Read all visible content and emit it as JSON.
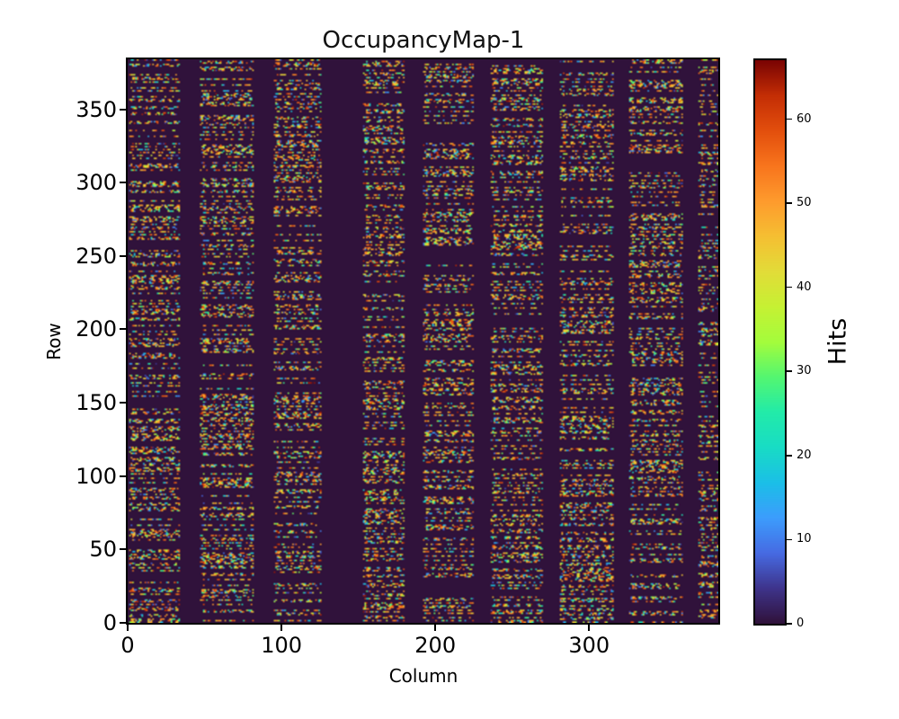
{
  "figure": {
    "title": "OccupancyMap-1",
    "background_color": "#ffffff"
  },
  "axes": {
    "xlabel": "Column",
    "ylabel": "Row",
    "xticks": [
      0,
      100,
      200,
      300
    ],
    "yticks": [
      0,
      50,
      100,
      150,
      200,
      250,
      300,
      350
    ],
    "xlim": [
      0,
      384
    ],
    "ylim": [
      0,
      384
    ]
  },
  "colorbar": {
    "label": "Hits",
    "ticks": [
      0,
      10,
      20,
      30,
      40,
      50,
      60
    ],
    "vmin": 0,
    "vmax": 67,
    "colormap": "turbo"
  },
  "chart_data": {
    "type": "heatmap",
    "title": "OccupancyMap-1",
    "xlabel": "Column",
    "ylabel": "Row",
    "value_label": "Hits",
    "x_range": [
      0,
      384
    ],
    "y_range": [
      0,
      384
    ],
    "value_range": [
      0,
      67
    ],
    "colormap": "turbo",
    "background_value": 0,
    "background_color": "#30123b",
    "pattern": "sparse random hit speckles arranged as horizontal dashes inside vertical column bands separated by dark dead-column gaps",
    "column_bands": [
      [
        1,
        34
      ],
      [
        47,
        82
      ],
      [
        95,
        126
      ],
      [
        153,
        180
      ],
      [
        192,
        225
      ],
      [
        236,
        270
      ],
      [
        281,
        316
      ],
      [
        326,
        361
      ],
      [
        371,
        384
      ]
    ],
    "row_active_probability": 0.45,
    "lit_run_cells_max": 4,
    "gap_run_cells_max": 5,
    "orange_bias_probability": 0.3,
    "seed": 1337
  }
}
